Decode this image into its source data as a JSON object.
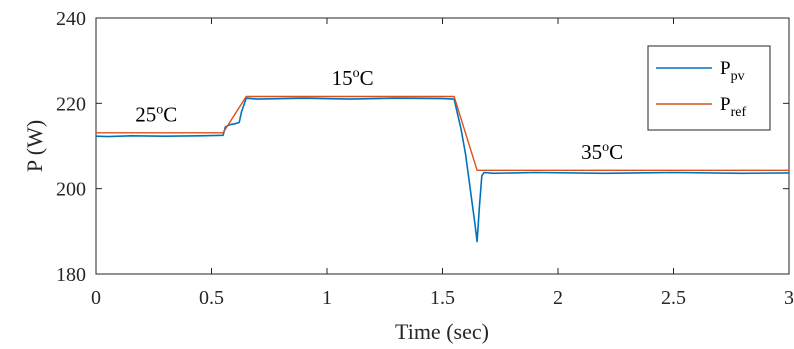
{
  "chart_data": {
    "type": "line",
    "title": "",
    "xlabel": "Time (sec)",
    "ylabel": "P (W)",
    "xlim": [
      0,
      3
    ],
    "ylim": [
      180,
      240
    ],
    "xticks": [
      0,
      0.5,
      1,
      1.5,
      2,
      2.5,
      3
    ],
    "xtick_labels": [
      "0",
      "0.5",
      "1",
      "1.5",
      "2",
      "2.5",
      "3"
    ],
    "yticks": [
      180,
      200,
      220,
      240
    ],
    "ytick_labels": [
      "180",
      "200",
      "220",
      "240"
    ],
    "grid": false,
    "legend_position": "top-right",
    "annotations": [
      {
        "base": "25",
        "sup": "o",
        "unit": "C",
        "x": 0.17,
        "y": 215.8
      },
      {
        "base": "15",
        "sup": "o",
        "unit": "C",
        "x": 1.02,
        "y": 224.3
      },
      {
        "base": "35",
        "sup": "o",
        "unit": "C",
        "x": 2.1,
        "y": 206.9
      }
    ],
    "series": [
      {
        "name_base": "P",
        "name_sub": "pv",
        "color": "#0072BD",
        "x": [
          0,
          0.05,
          0.15,
          0.3,
          0.45,
          0.55,
          0.56,
          0.58,
          0.6,
          0.62,
          0.63,
          0.65,
          0.7,
          0.9,
          1.1,
          1.3,
          1.5,
          1.55,
          1.58,
          1.6,
          1.62,
          1.64,
          1.65,
          1.66,
          1.67,
          1.68,
          1.72,
          1.9,
          2.2,
          2.5,
          2.8,
          3.0
        ],
        "y": [
          212.3,
          212.2,
          212.4,
          212.3,
          212.4,
          212.5,
          214.5,
          215.0,
          215.2,
          215.5,
          218.0,
          221.2,
          221.0,
          221.2,
          221.0,
          221.2,
          221.1,
          221.0,
          214.0,
          208.0,
          200.0,
          192.0,
          187.6,
          196.0,
          203.0,
          203.8,
          203.6,
          203.8,
          203.6,
          203.8,
          203.6,
          203.7
        ]
      },
      {
        "name_base": "P",
        "name_sub": "ref",
        "color": "#D95319",
        "x": [
          0,
          0.55,
          0.65,
          1.55,
          1.65,
          3.0
        ],
        "y": [
          213.1,
          213.1,
          221.6,
          221.6,
          204.3,
          204.3
        ]
      }
    ]
  }
}
